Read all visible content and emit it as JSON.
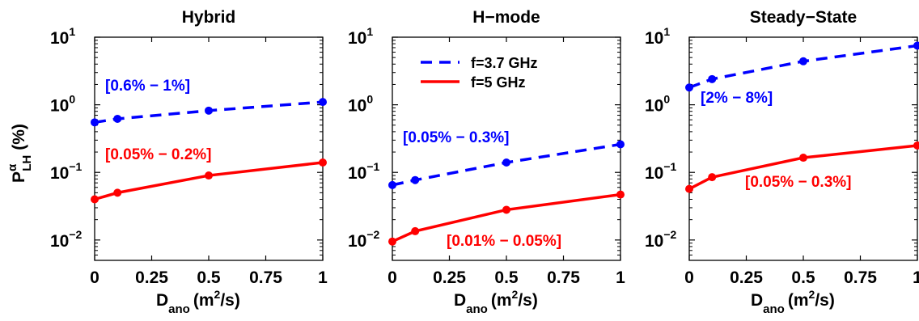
{
  "chart_data": [
    {
      "type": "line",
      "title": "Hybrid",
      "xlabel_main": "D",
      "xlabel_sub": "ano",
      "xlabel_unit_pre": "(m",
      "xlabel_unit_sup": "2",
      "xlabel_unit_post": "/s)",
      "ylabel_main": "P",
      "ylabel_sup": "α",
      "ylabel_sub": "LH",
      "ylabel_unit": "(%)",
      "yscale": "log",
      "xlim": [
        0,
        1
      ],
      "ylim": [
        0.005,
        10
      ],
      "xticks": [
        "0",
        "0.25",
        "0.5",
        "0.75",
        "1"
      ],
      "yticks": [
        {
          "base": "10",
          "exp": "1"
        },
        {
          "base": "10",
          "exp": "0"
        },
        {
          "base": "10",
          "exp": "−1"
        },
        {
          "base": "10",
          "exp": "−2"
        }
      ],
      "series": [
        {
          "name": "f=3.7 GHz",
          "color": "#0000ff",
          "style": "dashed",
          "x": [
            0,
            0.1,
            0.5,
            1
          ],
          "y": [
            0.55,
            0.62,
            0.82,
            1.1
          ]
        },
        {
          "name": "f=5 GHz",
          "color": "#ff0000",
          "style": "solid",
          "x": [
            0,
            0.1,
            0.5,
            1
          ],
          "y": [
            0.04,
            0.05,
            0.09,
            0.14
          ]
        }
      ],
      "annotations": [
        {
          "text": "[0.6% − 1%]",
          "color": "#0000ff"
        },
        {
          "text": "[0.05% − 0.2%]",
          "color": "#ff0000"
        }
      ]
    },
    {
      "type": "line",
      "title": "H−mode",
      "xlabel_main": "D",
      "xlabel_sub": "ano",
      "xlabel_unit_pre": "(m",
      "xlabel_unit_sup": "2",
      "xlabel_unit_post": "/s)",
      "yscale": "log",
      "xlim": [
        0,
        1
      ],
      "ylim": [
        0.005,
        10
      ],
      "xticks": [
        "0",
        "0.25",
        "0.5",
        "0.75",
        "1"
      ],
      "yticks": [
        {
          "base": "10",
          "exp": "1"
        },
        {
          "base": "10",
          "exp": "0"
        },
        {
          "base": "10",
          "exp": "−1"
        },
        {
          "base": "10",
          "exp": "−2"
        }
      ],
      "legend": {
        "placement": "top-center",
        "entries": [
          "f=3.7 GHz",
          "f=5 GHz"
        ]
      },
      "series": [
        {
          "name": "f=3.7 GHz",
          "color": "#0000ff",
          "style": "dashed",
          "x": [
            0,
            0.1,
            0.5,
            1
          ],
          "y": [
            0.065,
            0.077,
            0.14,
            0.26
          ]
        },
        {
          "name": "f=5 GHz",
          "color": "#ff0000",
          "style": "solid",
          "x": [
            0,
            0.1,
            0.5,
            1
          ],
          "y": [
            0.0095,
            0.0135,
            0.028,
            0.047
          ]
        }
      ],
      "annotations": [
        {
          "text": "[0.05% − 0.3%]",
          "color": "#0000ff"
        },
        {
          "text": "[0.01% − 0.05%]",
          "color": "#ff0000"
        }
      ]
    },
    {
      "type": "line",
      "title": "Steady−State",
      "xlabel_main": "D",
      "xlabel_sub": "ano",
      "xlabel_unit_pre": "(m",
      "xlabel_unit_sup": "2",
      "xlabel_unit_post": "/s)",
      "yscale": "log",
      "xlim": [
        0,
        1
      ],
      "ylim": [
        0.005,
        10
      ],
      "xticks": [
        "0",
        "0.25",
        "0.5",
        "0.75",
        "1"
      ],
      "yticks": [
        {
          "base": "10",
          "exp": "1"
        },
        {
          "base": "10",
          "exp": "0"
        },
        {
          "base": "10",
          "exp": "−1"
        },
        {
          "base": "10",
          "exp": "−2"
        }
      ],
      "series": [
        {
          "name": "f=3.7 GHz",
          "color": "#0000ff",
          "style": "dashed",
          "x": [
            0,
            0.1,
            0.5,
            1
          ],
          "y": [
            1.8,
            2.4,
            4.4,
            7.5
          ]
        },
        {
          "name": "f=5 GHz",
          "color": "#ff0000",
          "style": "solid",
          "x": [
            0,
            0.1,
            0.5,
            1
          ],
          "y": [
            0.057,
            0.085,
            0.165,
            0.25
          ]
        }
      ],
      "annotations": [
        {
          "text": "[2% − 8%]",
          "color": "#0000ff"
        },
        {
          "text": "[0.05% − 0.3%]",
          "color": "#ff0000"
        }
      ]
    }
  ]
}
